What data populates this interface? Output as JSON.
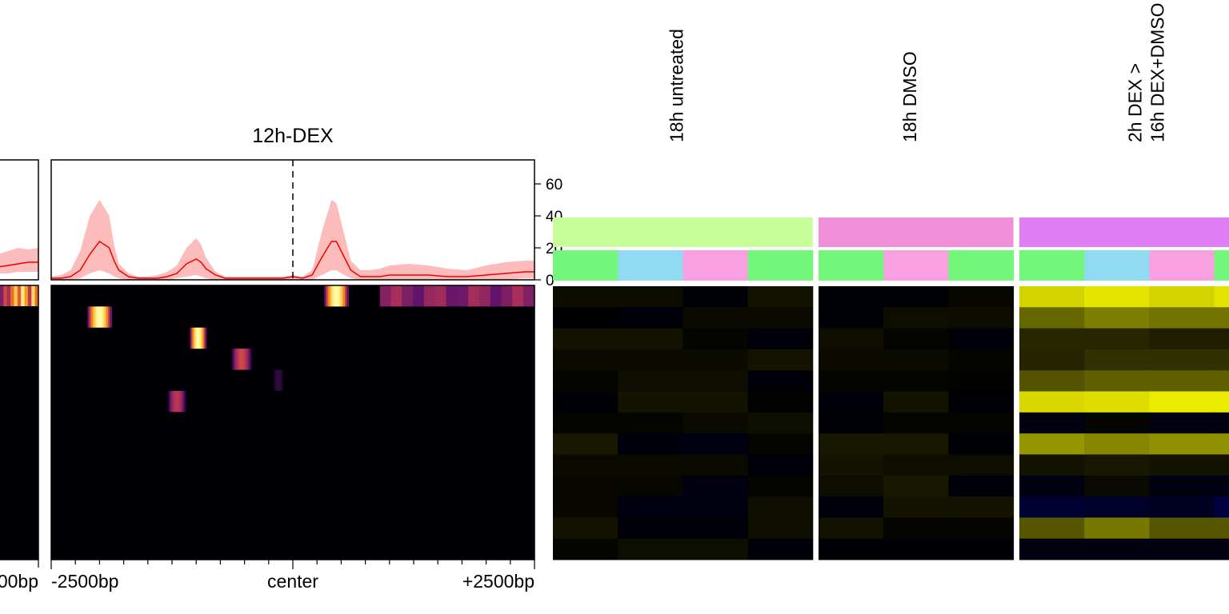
{
  "chart_data": [
    {
      "type": "area",
      "panel": "left-partial",
      "bottom_tick_label": "00bp",
      "mean_profile": [
        4,
        5,
        6,
        8,
        9,
        10,
        11,
        11
      ],
      "band_upper": [
        8,
        10,
        12,
        16,
        18,
        20,
        19,
        20
      ],
      "band_lower": [
        2,
        2,
        3,
        4,
        4,
        5,
        5,
        5
      ],
      "heatmap_top_row": [
        0.35,
        0.55,
        0.45,
        0.65,
        0.85,
        0.6,
        0.95,
        0.75,
        0.5,
        0.9,
        0.65
      ]
    },
    {
      "type": "area",
      "title": "12h-DEX",
      "x_ticks": [
        "-2500bp",
        "center",
        "+2500bp"
      ],
      "x_range": [
        -2500,
        2500
      ],
      "y_ticks": [
        0,
        20,
        40,
        60
      ],
      "ylim": [
        0,
        75
      ],
      "center_line": "dashed",
      "mean_profile": {
        "x": [
          -2500,
          -2400,
          -2300,
          -2200,
          -2100,
          -2000,
          -1900,
          -1850,
          -1800,
          -1700,
          -1600,
          -1500,
          -1400,
          -1300,
          -1200,
          -1100,
          -1000,
          -950,
          -900,
          -800,
          -700,
          -600,
          -500,
          -400,
          -300,
          -200,
          -100,
          0,
          100,
          200,
          300,
          400,
          450,
          500,
          600,
          700,
          800,
          900,
          1000,
          1200,
          1400,
          1600,
          1800,
          2000,
          2200,
          2400,
          2500
        ],
        "y": [
          1,
          1,
          2,
          6,
          16,
          24,
          20,
          12,
          6,
          2,
          1,
          1,
          1,
          2,
          4,
          10,
          13,
          11,
          7,
          3,
          1,
          1,
          1,
          1,
          1,
          1,
          1,
          2,
          1,
          3,
          14,
          24,
          24,
          18,
          6,
          2,
          2,
          2,
          3,
          3,
          3,
          2,
          2,
          3,
          4,
          5,
          5
        ]
      },
      "band_upper": [
        2,
        3,
        6,
        18,
        40,
        50,
        40,
        22,
        10,
        4,
        2,
        2,
        3,
        5,
        9,
        20,
        26,
        22,
        14,
        5,
        2,
        2,
        2,
        2,
        2,
        2,
        2,
        3,
        2,
        6,
        30,
        50,
        48,
        36,
        12,
        6,
        6,
        7,
        9,
        10,
        9,
        7,
        6,
        9,
        11,
        12,
        12
      ],
      "band_lower": [
        0,
        0,
        0,
        1,
        4,
        6,
        4,
        2,
        1,
        0,
        0,
        0,
        0,
        0,
        1,
        2,
        3,
        2,
        1,
        0,
        0,
        0,
        0,
        0,
        0,
        0,
        0,
        0,
        0,
        0,
        3,
        6,
        6,
        4,
        1,
        0,
        0,
        0,
        0,
        0,
        0,
        0,
        0,
        0,
        0,
        1,
        1
      ],
      "heatmap_rows": [
        {
          "row": 1,
          "hotspots": [
            {
              "x": 450,
              "width": 250,
              "intensity": 1.0
            },
            {
              "x": 1700,
              "width": 1600,
              "intensity": 0.45
            }
          ]
        },
        {
          "row": 2,
          "hotspots": [
            {
              "x": -2000,
              "width": 250,
              "intensity": 1.0
            }
          ]
        },
        {
          "row": 3,
          "hotspots": [
            {
              "x": -980,
              "width": 170,
              "intensity": 1.0
            }
          ]
        },
        {
          "row": 4,
          "hotspots": [
            {
              "x": -530,
              "width": 200,
              "intensity": 0.55
            }
          ]
        },
        {
          "row": 5,
          "hotspots": [
            {
              "x": -150,
              "width": 100,
              "intensity": 0.15
            }
          ]
        },
        {
          "row": 6,
          "hotspots": [
            {
              "x": -1200,
              "width": 180,
              "intensity": 0.5
            }
          ]
        },
        {
          "row": 7,
          "hotspots": []
        },
        {
          "row": 8,
          "hotspots": []
        },
        {
          "row": 9,
          "hotspots": []
        },
        {
          "row": 10,
          "hotspots": []
        },
        {
          "row": 11,
          "hotspots": []
        },
        {
          "row": 12,
          "hotspots": []
        },
        {
          "row": 13,
          "hotspots": []
        }
      ]
    },
    {
      "type": "heatmap",
      "columns_groups": [
        {
          "label": "18h untreated",
          "group_color": "#c8fe99",
          "sample_colors": [
            "#72f77a",
            "#90dbf2",
            "#f8a0e0",
            "#72f77a"
          ]
        },
        {
          "label": "18h DMSO",
          "group_color": "#f28fd9",
          "sample_colors": [
            "#72f77a",
            "#f8a0e0",
            "#72f77a"
          ]
        },
        {
          "label": "2h DEX >\n16h DEX+DMSO",
          "group_color": "#e07ff5",
          "sample_colors": [
            "#72f77a",
            "#90dbf2",
            "#f8a0e0",
            "#72f77a"
          ]
        }
      ],
      "color_scale": {
        "negative": "#000080",
        "zero": "#000000",
        "positive": "#ffff00"
      },
      "values": [
        [
          0.05,
          0.05,
          -0.05,
          0.08,
          -0.05,
          -0.05,
          0.03,
          0.88,
          0.95,
          0.88,
          0.95
        ],
        [
          -0.02,
          -0.06,
          0.04,
          0.04,
          -0.05,
          0.06,
          0.05,
          0.43,
          0.52,
          0.48,
          0.48
        ],
        [
          0.08,
          0.08,
          0.02,
          -0.06,
          0.06,
          0.02,
          -0.06,
          0.16,
          0.16,
          0.13,
          0.13
        ],
        [
          0.04,
          0.04,
          0.04,
          0.08,
          0.04,
          0.04,
          0.02,
          0.15,
          0.2,
          0.2,
          0.2
        ],
        [
          0.02,
          0.06,
          0.06,
          -0.06,
          0.02,
          0.02,
          0.01,
          0.35,
          0.4,
          0.4,
          0.4
        ],
        [
          -0.04,
          0.08,
          0.08,
          0.01,
          -0.08,
          0.08,
          -0.04,
          0.9,
          0.92,
          0.98,
          0.98
        ],
        [
          0.02,
          0.02,
          0.04,
          0.06,
          -0.04,
          0.02,
          0.02,
          -0.1,
          0.02,
          -0.1,
          -0.1
        ],
        [
          0.1,
          -0.08,
          -0.1,
          0.02,
          0.1,
          0.1,
          -0.04,
          0.62,
          0.56,
          0.6,
          0.6
        ],
        [
          0.04,
          0.04,
          0.04,
          -0.06,
          0.08,
          0.06,
          0.06,
          0.08,
          0.1,
          0.08,
          0.08
        ],
        [
          0.03,
          0.03,
          -0.1,
          0.02,
          0.06,
          0.1,
          -0.06,
          -0.12,
          0.04,
          -0.12,
          -0.12
        ],
        [
          0.03,
          -0.1,
          -0.1,
          0.06,
          -0.08,
          0.08,
          0.08,
          -0.32,
          -0.25,
          -0.2,
          -0.4
        ],
        [
          0.08,
          -0.06,
          -0.06,
          0.06,
          0.08,
          0.02,
          0.02,
          0.36,
          0.5,
          0.36,
          0.36
        ],
        [
          0.02,
          0.06,
          0.06,
          -0.06,
          -0.04,
          -0.04,
          -0.04,
          -0.1,
          -0.1,
          -0.1,
          -0.1
        ]
      ]
    }
  ]
}
